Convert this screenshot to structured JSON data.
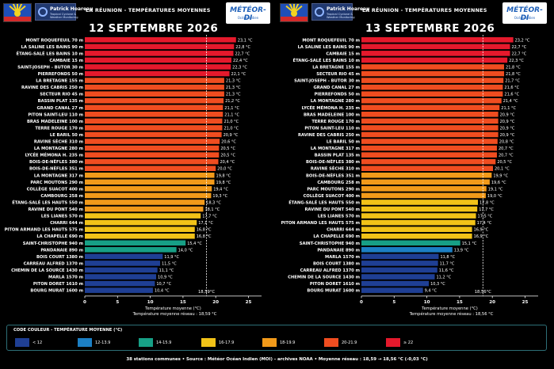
{
  "header": {
    "flag_icon": "reunion-flag-icon",
    "ph_logo_name": "Patrick Hoareau",
    "ph_logo_sub1": "Tropical Cyclone &",
    "ph_logo_sub2": "Weather Monitoring",
    "region_title": "LA RÉUNION - TEMPÉRATURES MOYENNES",
    "md_logo_name": "MÉTÉOR-DI",
    "md_logo_sub": "Océan Indien"
  },
  "chart_data": [
    {
      "type": "bar",
      "orientation": "horizontal",
      "title": "12 SEPTEMBRE 2026",
      "xlabel": "Température moyenne (°C)",
      "xlim": [
        0,
        27
      ],
      "xticks": [
        0,
        5,
        10,
        15,
        20,
        25
      ],
      "mean_line": 18.59,
      "mean_label": "18,59°C",
      "mean_note": "Température moyenne réseau : 18,59 °C",
      "categories": [
        "MONT ROQUEFEUIL 70 m",
        "LA SALINE LES BAINS 90 m",
        "ÉTANG-SALÉ LES BAINS 10 m",
        "CAMBAIE 15 m",
        "SAINT-JOSEPH - BUTOR 30 m",
        "PIERREFONDS 50 m",
        "LA BRETAGNE 155 m",
        "RAVINE DES CABRIS 250 m",
        "SECTEUR RIO 45 m",
        "BASSIN PLAT 135 m",
        "GRAND CANAL 27 m",
        "PITON SAINT-LEU 110 m",
        "BRAS MADELEINE 100 m",
        "TERRE ROUGE 170 m",
        "LE BARIL 50 m",
        "RAVINE SÈCHE 310 m",
        "LA MONTAGNE 280 m",
        "LYCÉE MÉMONA H. 235 m",
        "BOIS-DE-NÈFLES 380 m",
        "BOIS-DE-NÈFLES 351 m",
        "LA MONTAGNE 317 m",
        "PARC MOUTONS 290 m",
        "COLLÈGE SUACOT 400 m",
        "CAMBOURG 258 m",
        "ÉTANG-SALÉ LES HAUTS 550 m",
        "RAVINE DU PONT 540 m",
        "LES LIANES 570 m",
        "CHARRI 644 m",
        "PITON ARMAND LES HAUTS 575 m",
        "LA CHAPELLE 690 m",
        "SAINT-CHRISTOPHE 940 m",
        "PANDANAIE 890 m",
        "BOIS COURT 1380 m",
        "CARREAU ALFRED 1370 m",
        "CHEMIN DE LA SOURCE 1430 m",
        "MARLA 1570 m",
        "PITON DORET 1610 m",
        "BOURG MURAT 1600 m"
      ],
      "values": [
        23.1,
        22.8,
        22.7,
        22.4,
        22.3,
        22.1,
        21.3,
        21.3,
        21.3,
        21.2,
        21.1,
        21.1,
        21.0,
        21.0,
        20.9,
        20.6,
        20.5,
        20.5,
        20.4,
        20.0,
        19.8,
        19.8,
        19.4,
        19.3,
        18.3,
        18.1,
        17.7,
        17.1,
        16.8,
        16.8,
        15.4,
        14.0,
        11.9,
        11.5,
        11.1,
        10.9,
        10.7,
        10.4
      ],
      "labels": [
        "23,1 °C",
        "22,8 °C",
        "22,7 °C",
        "22,4 °C",
        "22,3 °C",
        "22,1 °C",
        "21,3 °C",
        "21,3 °C",
        "21,3 °C",
        "21,2 °C",
        "21,1 °C",
        "21,1 °C",
        "21,0 °C",
        "21,0 °C",
        "20,9 °C",
        "20,6 °C",
        "20,5 °C",
        "20,5 °C",
        "20,4 °C",
        "20,0 °C",
        "19,8 °C",
        "19,8 °C",
        "19,4 °C",
        "19,3 °C",
        "18,3 °C",
        "18,1 °C",
        "17,7 °C",
        "17,1 °C",
        "16,8 °C",
        "16,8 °C",
        "15,4 °C",
        "14,0 °C",
        "11,9 °C",
        "11,5 °C",
        "11,1 °C",
        "10,9 °C",
        "10,7 °C",
        "10,4 °C"
      ]
    },
    {
      "type": "bar",
      "orientation": "horizontal",
      "title": "13 SEPTEMBRE 2026",
      "xlabel": "Température moyenne (°C)",
      "xlim": [
        0,
        27
      ],
      "xticks": [
        0,
        5,
        10,
        15,
        20,
        25
      ],
      "mean_line": 18.56,
      "mean_label": "18,56°C",
      "mean_note": "Température moyenne réseau : 18,56 °C",
      "categories": [
        "MONT ROQUEFEUIL 70 m",
        "LA SALINE LES BAINS 90 m",
        "CAMBAIE 15 m",
        "ÉTANG-SALÉ LES BAINS 10 m",
        "LA BRETAGNE 155 m",
        "SECTEUR RIO 45 m",
        "SAINT-JOSEPH - BUTOR 30 m",
        "GRAND CANAL 27 m",
        "PIERREFONDS 50 m",
        "LA MONTAGNE 280 m",
        "LYCÉE MÉMONA H. 235 m",
        "BRAS MADELEINE 100 m",
        "TERRE ROUGE 170 m",
        "PITON SAINT-LEU 110 m",
        "RAVINE DES CABRIS 250 m",
        "LE BARIL 50 m",
        "LA MONTAGNE 317 m",
        "BASSIN PLAT 135 m",
        "BOIS-DE-NÈFLES 380 m",
        "RAVINE SÈCHE 310 m",
        "BOIS-DE-NÈFLES 351 m",
        "CAMBOURG 258 m",
        "PARC MOUTONS 290 m",
        "COLLÈGE SUACOT 400 m",
        "ÉTANG-SALÉ LES HAUTS 550 m",
        "RAVINE DU PONT 540 m",
        "LES LIANES 570 m",
        "PITON ARMAND LES HAUTS 575 m",
        "CHARRI 644 m",
        "LA CHAPELLE 690 m",
        "SAINT-CHRISTOPHE 940 m",
        "PANDANAIE 890 m",
        "MARLA 1570 m",
        "BOIS COURT 1380 m",
        "CARREAU ALFRED 1370 m",
        "CHEMIN DE LA SOURCE 1430 m",
        "PITON DORET 1610 m",
        "BOURG MURAT 1600 m"
      ],
      "values": [
        23.2,
        22.7,
        22.7,
        22.3,
        21.8,
        21.8,
        21.7,
        21.6,
        21.6,
        21.4,
        21.1,
        20.9,
        20.9,
        20.9,
        20.9,
        20.8,
        20.7,
        20.7,
        20.5,
        20.1,
        19.9,
        19.6,
        19.1,
        19.0,
        17.8,
        17.7,
        17.5,
        17.4,
        16.9,
        16.9,
        15.1,
        13.9,
        11.8,
        11.7,
        11.6,
        11.2,
        10.3,
        9.4
      ],
      "labels": [
        "23,2 °C",
        "22,7 °C",
        "22,7 °C",
        "22,3 °C",
        "21,8 °C",
        "21,8 °C",
        "21,7 °C",
        "21,6 °C",
        "21,6 °C",
        "21,4 °C",
        "21,1 °C",
        "20,9 °C",
        "20,9 °C",
        "20,9 °C",
        "20,9 °C",
        "20,8 °C",
        "20,7 °C",
        "20,7 °C",
        "20,5 °C",
        "20,1 °C",
        "19,9 °C",
        "19,6 °C",
        "19,1 °C",
        "19,0 °C",
        "17,8 °C",
        "17,7 °C",
        "17,5 °C",
        "17,4 °C",
        "16,9 °C",
        "16,9 °C",
        "15,1 °C",
        "13,9 °C",
        "11,8 °C",
        "11,7 °C",
        "11,6 °C",
        "11,2 °C",
        "10,3 °C",
        "9,4 °C"
      ]
    }
  ],
  "legend": {
    "title": "CODE COULEUR - TEMPÉRATURE MOYENNE (°C)",
    "items": [
      {
        "label": "< 12",
        "color": "#1f3f94"
      },
      {
        "label": "12-13.9",
        "color": "#1c7fc4"
      },
      {
        "label": "14-15.9",
        "color": "#17a086"
      },
      {
        "label": "16-17.9",
        "color": "#f2c318"
      },
      {
        "label": "18-19.9",
        "color": "#f29a1a"
      },
      {
        "label": "20-21.9",
        "color": "#f04d20"
      },
      {
        "label": "≥ 22",
        "color": "#e5192c"
      }
    ]
  },
  "footer": "38 stations communes  •  Source : Météor Océan Indien (MOI) - archives NOAA  •  Moyenne réseau : 18,59 → 18,56 °C (-0,03 °C)"
}
